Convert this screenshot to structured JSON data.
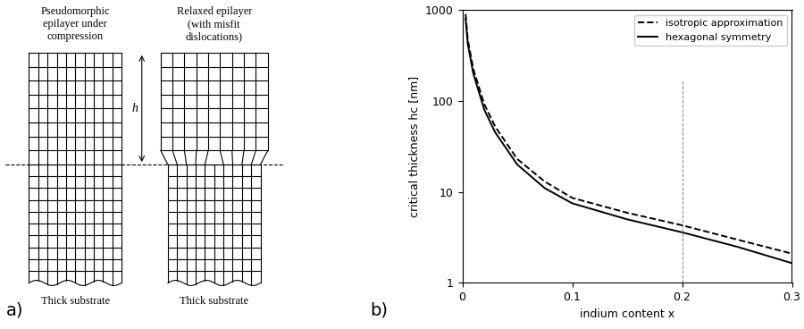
{
  "diagram": {
    "panel_label": "a)",
    "left": {
      "title": "Pseudomorphic\nepilayer under\ncompression",
      "substrate_label": "Thick substrate"
    },
    "right": {
      "title": "Relaxed epilayer\n(with misfit\ndislocations)",
      "substrate_label": "Thick substrate"
    },
    "thickness_label": "h"
  },
  "chart_data": {
    "panel_label": "b)",
    "type": "line",
    "xlabel": "indium content x",
    "ylabel": "critical thickness hc [nm]",
    "log": "y",
    "xlim": [
      0,
      0.3
    ],
    "ylim": [
      1,
      1000
    ],
    "xticks": [
      0,
      0.1,
      0.2,
      0.3
    ],
    "yticks": [
      1,
      10,
      100,
      1000
    ],
    "legend": "upper right",
    "reference_x": 0.2,
    "x": [
      0.003,
      0.005,
      0.01,
      0.02,
      0.03,
      0.05,
      0.075,
      0.1,
      0.15,
      0.2,
      0.25,
      0.3
    ],
    "series": [
      {
        "name": "isotropic approximation",
        "color": "#000000",
        "line_style": "dashed",
        "values": [
          900,
          470,
          225,
          92,
          52,
          23,
          13,
          8.6,
          5.9,
          4.3,
          3.0,
          2.1
        ]
      },
      {
        "name": "hexagonal symmetry",
        "color": "#000000",
        "line_style": "solid",
        "values": [
          800,
          420,
          200,
          80,
          45,
          20,
          11,
          7.5,
          5.0,
          3.6,
          2.5,
          1.65
        ]
      }
    ]
  }
}
